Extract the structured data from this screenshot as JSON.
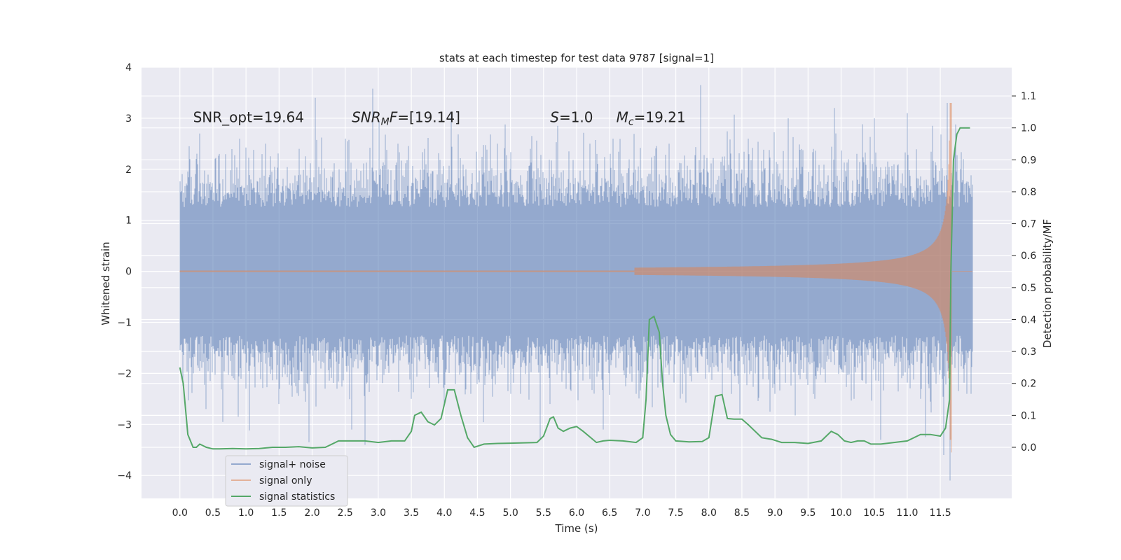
{
  "chart_data": {
    "type": "line",
    "title": "stats at each timestep for test data 9787 [signal=1]",
    "xlabel": "Time (s)",
    "ylabel": "Whitened strain",
    "y2label": "Detection probability/MF",
    "xlim": [
      -0.58,
      12.58
    ],
    "ylim": [
      -4.45,
      4.0
    ],
    "y2lim": [
      -0.16,
      1.19
    ],
    "x_ticks": [
      0.0,
      0.5,
      1.0,
      1.5,
      2.0,
      2.5,
      3.0,
      3.5,
      4.0,
      4.5,
      5.0,
      5.5,
      6.0,
      6.5,
      7.0,
      7.5,
      8.0,
      8.5,
      9.0,
      9.5,
      10.0,
      10.5,
      11.0,
      11.5
    ],
    "x_tick_labels": [
      "0.0",
      "0.5",
      "1.0",
      "1.5",
      "2.0",
      "2.5",
      "3.0",
      "3.5",
      "4.0",
      "4.5",
      "5.0",
      "5.5",
      "6.0",
      "6.5",
      "7.0",
      "7.5",
      "8.0",
      "8.5",
      "9.0",
      "9.5",
      "10.0",
      "10.5",
      "11.0",
      "11.5"
    ],
    "y_ticks": [
      -4,
      -3,
      -2,
      -1,
      0,
      1,
      2,
      3,
      4
    ],
    "y_tick_labels": [
      "−4",
      "−3",
      "−2",
      "−1",
      "0",
      "1",
      "2",
      "3",
      "4"
    ],
    "y2_ticks": [
      0.0,
      0.1,
      0.2,
      0.3,
      0.4,
      0.5,
      0.6,
      0.7,
      0.8,
      0.9,
      1.0,
      1.1
    ],
    "y2_tick_labels": [
      "0.0",
      "0.1",
      "0.2",
      "0.3",
      "0.4",
      "0.5",
      "0.6",
      "0.7",
      "0.8",
      "0.9",
      "1.0",
      "1.1"
    ],
    "grid": true,
    "legend_position": "lower-left",
    "annotations": [
      {
        "id": "snr-opt",
        "text": "SNR_opt=19.64",
        "x": 0.2,
        "y": 2.92
      },
      {
        "id": "snr-mf",
        "text": "SNR_MF=[19.14]",
        "x": 2.6,
        "y": 2.92
      },
      {
        "id": "s-value",
        "text": "S=1.0",
        "x": 5.6,
        "y": 2.92
      },
      {
        "id": "mc-value",
        "text": "M_c=19.21",
        "x": 6.6,
        "y": 2.92
      }
    ],
    "series": [
      {
        "name": "signal+ noise",
        "color": "#4c72b0",
        "description_axis": "left",
        "x_range": [
          0.0,
          11.99
        ],
        "typical_amplitude": 1.2,
        "peaks": [
          {
            "x": 0.15,
            "y": 2.2
          },
          {
            "x": 0.2,
            "y": -2.0
          },
          {
            "x": 0.3,
            "y": 2.7
          },
          {
            "x": 0.4,
            "y": -2.7
          },
          {
            "x": 0.6,
            "y": 2.3
          },
          {
            "x": 0.65,
            "y": -2.95
          },
          {
            "x": 0.9,
            "y": 2.6
          },
          {
            "x": 1.0,
            "y": -2.3
          },
          {
            "x": 1.3,
            "y": 2.5
          },
          {
            "x": 1.5,
            "y": -2.6
          },
          {
            "x": 1.8,
            "y": 2.4
          },
          {
            "x": 1.95,
            "y": -3.35
          },
          {
            "x": 2.05,
            "y": 3.4
          },
          {
            "x": 2.2,
            "y": -2.3
          },
          {
            "x": 2.5,
            "y": 2.6
          },
          {
            "x": 2.6,
            "y": -3.1
          },
          {
            "x": 2.8,
            "y": -3.4
          },
          {
            "x": 2.92,
            "y": 3.58
          },
          {
            "x": 3.3,
            "y": 2.5
          },
          {
            "x": 3.5,
            "y": -2.5
          },
          {
            "x": 3.7,
            "y": 2.4
          },
          {
            "x": 4.0,
            "y": -2.6
          },
          {
            "x": 4.1,
            "y": 3.1
          },
          {
            "x": 4.4,
            "y": -2.4
          },
          {
            "x": 4.8,
            "y": 2.5
          },
          {
            "x": 5.0,
            "y": -2.4
          },
          {
            "x": 5.3,
            "y": 2.4
          },
          {
            "x": 5.6,
            "y": -2.6
          },
          {
            "x": 6.2,
            "y": 2.5
          },
          {
            "x": 6.4,
            "y": -3.1
          },
          {
            "x": 6.55,
            "y": 2.6
          },
          {
            "x": 6.9,
            "y": -2.4
          },
          {
            "x": 7.4,
            "y": 2.5
          },
          {
            "x": 7.6,
            "y": -2.4
          },
          {
            "x": 7.88,
            "y": 3.65
          },
          {
            "x": 8.2,
            "y": -2.4
          },
          {
            "x": 8.6,
            "y": 2.6
          },
          {
            "x": 9.0,
            "y": -2.4
          },
          {
            "x": 9.2,
            "y": 3.0
          },
          {
            "x": 9.6,
            "y": -2.5
          },
          {
            "x": 9.9,
            "y": 3.2
          },
          {
            "x": 10.2,
            "y": -2.5
          },
          {
            "x": 10.5,
            "y": 3.0
          },
          {
            "x": 10.6,
            "y": -3.3
          },
          {
            "x": 11.0,
            "y": 3.1
          },
          {
            "x": 11.2,
            "y": -2.5
          },
          {
            "x": 11.55,
            "y": -3.6
          },
          {
            "x": 11.6,
            "y": 3.3
          },
          {
            "x": 11.65,
            "y": -4.1
          },
          {
            "x": 11.85,
            "y": 2.2
          },
          {
            "x": 11.9,
            "y": -2.4
          }
        ]
      },
      {
        "name": "signal only",
        "color": "#dd8452",
        "description_axis": "left",
        "x_range": [
          0.0,
          11.99
        ],
        "merger_time": 11.67,
        "peak_amplitude": 3.3,
        "min_value": -3.55
      },
      {
        "name": "signal statistics",
        "color": "#55a868",
        "description_axis": "right",
        "x": [
          0.0,
          0.05,
          0.12,
          0.2,
          0.25,
          0.3,
          0.4,
          0.5,
          0.6,
          0.8,
          1.0,
          1.2,
          1.4,
          1.6,
          1.8,
          2.0,
          2.2,
          2.4,
          2.6,
          2.8,
          3.0,
          3.2,
          3.4,
          3.5,
          3.55,
          3.65,
          3.75,
          3.85,
          3.95,
          4.05,
          4.15,
          4.25,
          4.35,
          4.45,
          4.6,
          4.8,
          5.0,
          5.2,
          5.4,
          5.5,
          5.6,
          5.65,
          5.72,
          5.8,
          5.9,
          6.0,
          6.1,
          6.3,
          6.4,
          6.5,
          6.7,
          6.9,
          7.0,
          7.05,
          7.1,
          7.17,
          7.25,
          7.3,
          7.35,
          7.42,
          7.5,
          7.7,
          7.9,
          8.0,
          8.1,
          8.2,
          8.28,
          8.38,
          8.5,
          8.6,
          8.8,
          8.95,
          9.1,
          9.3,
          9.5,
          9.7,
          9.85,
          9.95,
          10.05,
          10.15,
          10.25,
          10.35,
          10.45,
          10.6,
          10.8,
          11.0,
          11.2,
          11.35,
          11.5,
          11.58,
          11.64,
          11.66,
          11.7,
          11.75,
          11.8,
          11.85,
          11.95
        ],
        "values": [
          0.25,
          0.2,
          0.04,
          0.0,
          0.0,
          0.01,
          0.0,
          -0.005,
          -0.005,
          -0.004,
          -0.005,
          -0.004,
          0.0,
          0.0,
          0.002,
          -0.002,
          0.0,
          0.02,
          0.02,
          0.02,
          0.015,
          0.02,
          0.02,
          0.05,
          0.1,
          0.11,
          0.08,
          0.07,
          0.09,
          0.18,
          0.18,
          0.1,
          0.03,
          0.0,
          0.01,
          0.012,
          0.013,
          0.014,
          0.015,
          0.035,
          0.09,
          0.095,
          0.06,
          0.05,
          0.06,
          0.065,
          0.05,
          0.015,
          0.02,
          0.022,
          0.02,
          0.015,
          0.03,
          0.15,
          0.4,
          0.41,
          0.36,
          0.2,
          0.1,
          0.04,
          0.02,
          0.017,
          0.018,
          0.03,
          0.16,
          0.165,
          0.09,
          0.088,
          0.088,
          0.07,
          0.03,
          0.025,
          0.015,
          0.015,
          0.012,
          0.02,
          0.05,
          0.04,
          0.02,
          0.015,
          0.02,
          0.02,
          0.01,
          0.01,
          0.015,
          0.02,
          0.04,
          0.04,
          0.035,
          0.06,
          0.15,
          0.55,
          0.9,
          0.98,
          1.0,
          1.0,
          1.0
        ]
      }
    ]
  }
}
